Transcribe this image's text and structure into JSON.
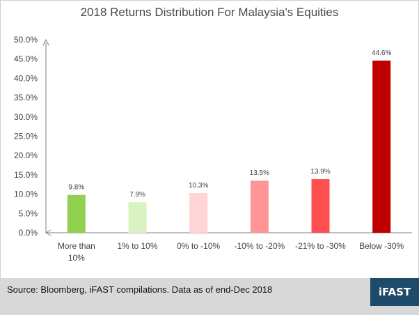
{
  "chart_data": {
    "type": "bar",
    "title": "2018 Returns Distribution For Malaysia's Equities",
    "categories": [
      [
        "More than",
        "10%"
      ],
      [
        "1% to 10%"
      ],
      [
        "0% to -10%"
      ],
      [
        "-10% to -20%"
      ],
      [
        "-21% to -30%"
      ],
      [
        "Below -30%"
      ]
    ],
    "values": [
      9.8,
      7.9,
      10.3,
      13.5,
      13.9,
      44.6
    ],
    "data_labels": [
      "9.8%",
      "7.9%",
      "10.3%",
      "13.5%",
      "13.9%",
      "44.6%"
    ],
    "bar_colors": [
      "#92d050",
      "#d8f2c2",
      "#ffd4d4",
      "#ff9595",
      "#ff4f4f",
      "#c00000"
    ],
    "y_ticks": [
      "0.0%",
      "5.0%",
      "10.0%",
      "15.0%",
      "20.0%",
      "25.0%",
      "30.0%",
      "35.0%",
      "40.0%",
      "45.0%",
      "50.0%"
    ],
    "ylim": [
      0,
      50
    ],
    "grid": false,
    "legend": "none"
  },
  "footer": {
    "source": "Source: Bloomberg, iFAST compilations. Data as of end-Dec 2018",
    "logo_text": "iFAST"
  }
}
